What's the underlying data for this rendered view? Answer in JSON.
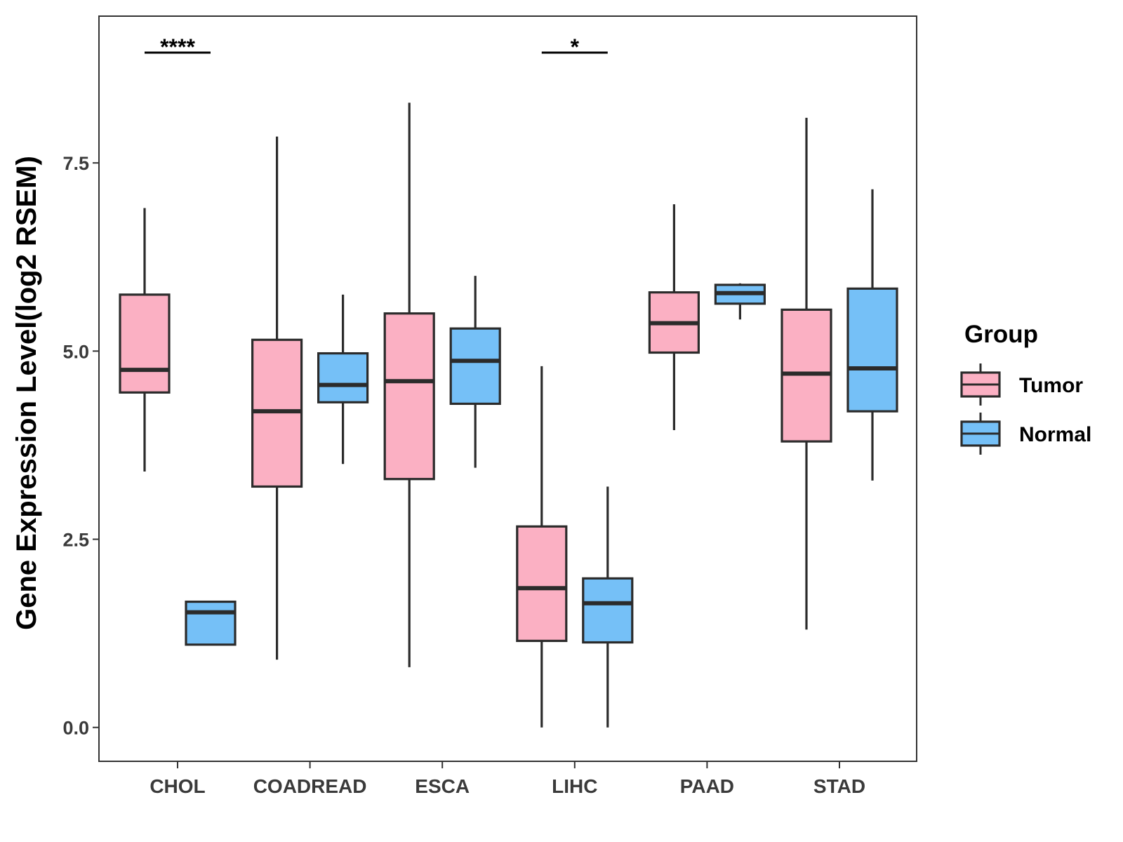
{
  "chart_data": {
    "type": "boxplot",
    "title": "",
    "xlabel": "",
    "ylabel": "Gene Expression Level(log2 RSEM)",
    "ylim": [
      -0.45,
      9.45
    ],
    "yticks": [
      0.0,
      2.5,
      5.0,
      7.5
    ],
    "ytick_labels": [
      "0.0",
      "2.5",
      "5.0",
      "7.5"
    ],
    "categories": [
      "CHOL",
      "COADREAD",
      "ESCA",
      "LIHC",
      "PAAD",
      "STAD"
    ],
    "legend": {
      "title": "Group",
      "position": "right",
      "items": [
        {
          "name": "Tumor",
          "color": "#FBB0C3"
        },
        {
          "name": "Normal",
          "color": "#75C0F7"
        }
      ]
    },
    "series": [
      {
        "name": "Tumor",
        "color": "#FBB0C3",
        "boxes": [
          {
            "category": "CHOL",
            "min": 3.4,
            "q1": 4.45,
            "median": 4.75,
            "q3": 5.75,
            "max": 6.9
          },
          {
            "category": "COADREAD",
            "min": 0.9,
            "q1": 3.2,
            "median": 4.2,
            "q3": 5.15,
            "max": 7.85
          },
          {
            "category": "ESCA",
            "min": 0.8,
            "q1": 3.3,
            "median": 4.6,
            "q3": 5.5,
            "max": 8.3
          },
          {
            "category": "LIHC",
            "min": 0.0,
            "q1": 1.15,
            "median": 1.85,
            "q3": 2.67,
            "max": 4.8
          },
          {
            "category": "PAAD",
            "min": 3.95,
            "q1": 4.98,
            "median": 5.37,
            "q3": 5.78,
            "max": 6.95
          },
          {
            "category": "STAD",
            "min": 1.3,
            "q1": 3.8,
            "median": 4.7,
            "q3": 5.55,
            "max": 8.1
          }
        ]
      },
      {
        "name": "Normal",
        "color": "#75C0F7",
        "boxes": [
          {
            "category": "CHOL",
            "min": 1.1,
            "q1": 1.1,
            "median": 1.53,
            "q3": 1.67,
            "max": 1.67
          },
          {
            "category": "COADREAD",
            "min": 3.5,
            "q1": 4.32,
            "median": 4.55,
            "q3": 4.97,
            "max": 5.75
          },
          {
            "category": "ESCA",
            "min": 3.45,
            "q1": 4.3,
            "median": 4.87,
            "q3": 5.3,
            "max": 6.0
          },
          {
            "category": "LIHC",
            "min": 0.0,
            "q1": 1.13,
            "median": 1.65,
            "q3": 1.98,
            "max": 3.2
          },
          {
            "category": "PAAD",
            "min": 5.42,
            "q1": 5.63,
            "median": 5.77,
            "q3": 5.88,
            "max": 5.9
          },
          {
            "category": "STAD",
            "min": 3.28,
            "q1": 4.2,
            "median": 4.77,
            "q3": 5.83,
            "max": 7.15
          }
        ]
      }
    ],
    "annotations": [
      {
        "category": "CHOL",
        "label": "****"
      },
      {
        "category": "LIHC",
        "label": "*"
      }
    ]
  }
}
